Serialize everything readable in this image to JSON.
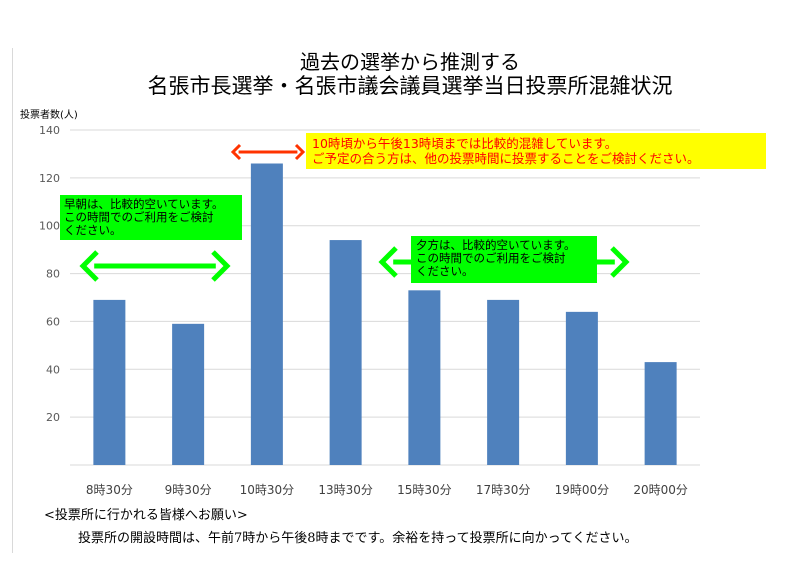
{
  "title_line1": "過去の選挙から推測する",
  "title_line2": "名張市長選挙・名張市議会議員選挙当日投票所混雑状況",
  "chart_data": {
    "type": "bar",
    "ylabel": "投票者数(人)",
    "ylim": [
      0,
      140
    ],
    "yticks": [
      20,
      40,
      60,
      80,
      100,
      120,
      140
    ],
    "categories": [
      "8時30分",
      "9時30分",
      "10時30分",
      "13時30分",
      "15時30分",
      "17時30分",
      "19時00分",
      "20時00分"
    ],
    "values": [
      69,
      59,
      126,
      94,
      73,
      69,
      64,
      43
    ],
    "bar_color": "#4f81bd",
    "grid": true
  },
  "annotations": {
    "yellow": {
      "line1": "10時頃から午後13時頃までは比較的混雑しています。",
      "line2": "ご予定の合う方は、他の投票時間に投票することをご検討ください。",
      "bg": "#ffff00",
      "color": "#ff0000"
    },
    "green_a": {
      "line1": "早朝は、比較的空いています。",
      "line2": "この時間でのご利用をご検討",
      "line3": "ください。",
      "bg": "#00ff00"
    },
    "green_b": {
      "line1": "夕方は、比較的空いています。",
      "line2": "この時間でのご利用をご検討",
      "line3": "ください。",
      "bg": "#00ff00"
    }
  },
  "footer": {
    "heading": "<投票所に行かれる皆様へお願い>",
    "body": "投票所の開設時間は、午前7時から午後8時までです。余裕を持って投票所に向かってください。"
  }
}
